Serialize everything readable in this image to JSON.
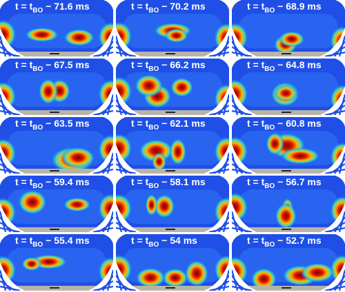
{
  "panels": [
    {
      "prefix": "t = t",
      "subscript": "BO",
      "suffix": " − 71.6 ms"
    },
    {
      "prefix": "t = t",
      "subscript": "BO",
      "suffix": " − 70.2 ms"
    },
    {
      "prefix": "t = t",
      "subscript": "BO",
      "suffix": " − 68.9 ms"
    },
    {
      "prefix": "t = t",
      "subscript": "BO",
      "suffix": " − 67.5 ms"
    },
    {
      "prefix": "t = t",
      "subscript": "BO",
      "suffix": " − 66.2 ms"
    },
    {
      "prefix": "t = t",
      "subscript": "BO",
      "suffix": " − 64.8 ms"
    },
    {
      "prefix": "t = t",
      "subscript": "BO",
      "suffix": " − 63.5 ms"
    },
    {
      "prefix": "t = t",
      "subscript": "BO",
      "suffix": " − 62.1 ms"
    },
    {
      "prefix": "t = t",
      "subscript": "BO",
      "suffix": " − 60.8 ms"
    },
    {
      "prefix": "t = t",
      "subscript": "BO",
      "suffix": " − 59.4 ms"
    },
    {
      "prefix": "t = t",
      "subscript": "BO",
      "suffix": " − 58.1 ms"
    },
    {
      "prefix": "t = t",
      "subscript": "BO",
      "suffix": " − 56.7 ms"
    },
    {
      "prefix": "t = t",
      "subscript": "BO",
      "suffix": " − 55.4 ms"
    },
    {
      "prefix": "t = t",
      "subscript": "BO",
      "suffix": " − 54 ms"
    },
    {
      "prefix": "t = t",
      "subscript": "BO",
      "suffix": " − 52.7 ms"
    }
  ]
}
